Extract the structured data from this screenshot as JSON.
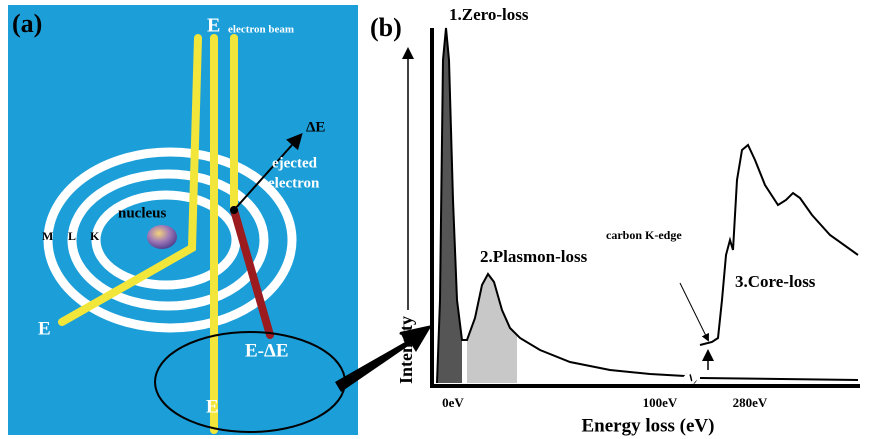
{
  "panel_a": {
    "label": "(a)",
    "beam_top_label": "E",
    "beam_caption": "electron beam",
    "delta_e": "ΔE",
    "ejected": [
      "ejected",
      "electron"
    ],
    "nucleus": "nucleus",
    "shells": [
      "M",
      "L",
      "K"
    ],
    "scattered_label": "E",
    "loss_label": "E-ΔE",
    "transmitted_label": "E"
  },
  "panel_b": {
    "label": "(b)",
    "peaks": [
      "1.Zero-loss",
      "2.Plasmon-loss",
      "3.Core-loss"
    ],
    "edge_note": "carbon K-edge",
    "y_axis": "Intensity",
    "x_ticks": [
      "0eV",
      "100eV",
      "280eV"
    ],
    "x_axis": "Energy loss (eV)"
  }
}
